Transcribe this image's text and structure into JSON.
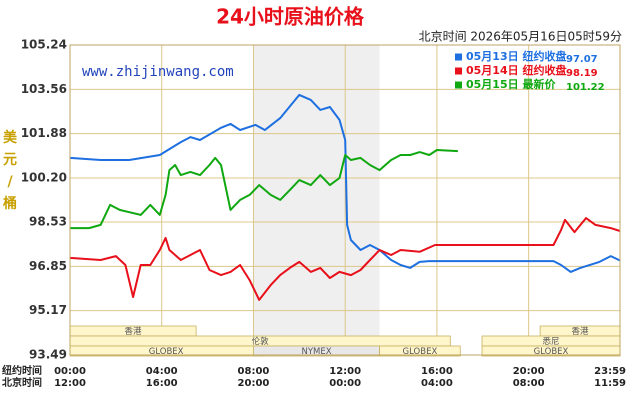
{
  "chart_data": {
    "type": "line",
    "title": "24小时原油价格",
    "subtitle": "北京时间 2026年05月16日05时59分",
    "watermark": "www.zhijinwang.com",
    "y_label": "美元/桶",
    "ylim": [
      93.49,
      105.24
    ],
    "yticks": [
      105.24,
      103.56,
      101.88,
      {
        "value": 100.2,
        "label": "100.20"
      },
      98.53,
      96.85,
      95.17,
      93.49
    ],
    "xlim": [
      0,
      1439
    ],
    "x_label": "纽约时间",
    "xticks": [
      {
        "value": 0,
        "label": "00:00"
      },
      {
        "value": 240,
        "label": "04:00"
      },
      {
        "value": 480,
        "label": "08:00"
      },
      {
        "value": 720,
        "label": "12:00"
      },
      {
        "value": 960,
        "label": "16:00"
      },
      {
        "value": 1200,
        "label": "20:00"
      },
      {
        "value": 1439,
        "label": "23:59"
      }
    ],
    "x2_label": "北京时间",
    "x2ticks": [
      {
        "value": 0,
        "label": "12:00"
      },
      {
        "value": 240,
        "label": "16:00"
      },
      {
        "value": 480,
        "label": "20:00"
      },
      {
        "value": 720,
        "label": "00:00"
      },
      {
        "value": 960,
        "label": "04:00"
      },
      {
        "value": 1200,
        "label": "08:00"
      },
      {
        "value": 1439,
        "label": "11:59"
      }
    ],
    "grid": true,
    "legend": "upper right",
    "series": [
      {
        "name": "05月13日 纽约收盘",
        "color": "#1e6fe0",
        "legend_value": 97.07,
        "x": [
          0,
          80,
          155,
          235,
          290,
          315,
          340,
          395,
          420,
          445,
          485,
          510,
          550,
          600,
          630,
          655,
          680,
          705,
          720,
          725,
          735,
          760,
          785,
          810,
          840,
          865,
          890,
          915,
          940,
          1265,
          1285,
          1310,
          1335,
          1385,
          1415,
          1439
        ],
        "values": [
          100.96,
          100.88,
          100.88,
          101.07,
          101.56,
          101.75,
          101.64,
          102.1,
          102.25,
          102.02,
          102.21,
          102.02,
          102.47,
          103.35,
          103.16,
          102.78,
          102.89,
          102.4,
          101.64,
          98.42,
          97.85,
          97.47,
          97.66,
          97.47,
          97.09,
          96.9,
          96.79,
          97.02,
          97.05,
          97.05,
          96.9,
          96.64,
          96.79,
          97.02,
          97.24,
          97.07
        ]
      },
      {
        "name": "05月14日 纽约收盘",
        "color": "#e8101a",
        "legend_value": 98.19,
        "x": [
          0,
          80,
          120,
          145,
          165,
          185,
          210,
          235,
          250,
          260,
          290,
          315,
          340,
          365,
          395,
          420,
          445,
          470,
          495,
          525,
          550,
          575,
          600,
          630,
          655,
          680,
          705,
          735,
          760,
          785,
          810,
          840,
          865,
          915,
          955,
          1265,
          1285,
          1295,
          1320,
          1350,
          1375,
          1415,
          1439
        ],
        "values": [
          97.17,
          97.09,
          97.24,
          96.9,
          95.69,
          96.9,
          96.9,
          97.47,
          97.93,
          97.47,
          97.09,
          97.28,
          97.47,
          96.71,
          96.52,
          96.64,
          96.9,
          96.33,
          95.58,
          96.14,
          96.52,
          96.79,
          97.02,
          96.64,
          96.79,
          96.41,
          96.64,
          96.52,
          96.71,
          97.09,
          97.47,
          97.28,
          97.47,
          97.4,
          97.66,
          97.66,
          98.23,
          98.61,
          98.15,
          98.68,
          98.42,
          98.3,
          98.19
        ]
      },
      {
        "name": "05月15日 最新价",
        "color": "#10a810",
        "legend_value": 101.22,
        "x": [
          0,
          50,
          80,
          105,
          130,
          185,
          210,
          235,
          250,
          260,
          275,
          290,
          315,
          340,
          365,
          380,
          395,
          420,
          445,
          470,
          495,
          525,
          550,
          575,
          600,
          630,
          655,
          680,
          705,
          720,
          735,
          760,
          785,
          810,
          840,
          865,
          890,
          915,
          940,
          960,
          1015
        ],
        "values": [
          98.3,
          98.3,
          98.42,
          99.18,
          98.99,
          98.8,
          99.18,
          98.8,
          99.56,
          100.5,
          100.69,
          100.31,
          100.43,
          100.31,
          100.69,
          100.96,
          100.69,
          98.99,
          99.37,
          99.56,
          99.93,
          99.56,
          99.37,
          99.74,
          100.12,
          99.93,
          100.31,
          99.93,
          100.2,
          101.07,
          100.88,
          100.96,
          100.69,
          100.5,
          100.88,
          101.07,
          101.07,
          101.18,
          101.07,
          101.26,
          101.22
        ]
      }
    ],
    "sessions": [
      [
        {
          "name": "香港",
          "start": 0,
          "end": 330
        },
        {
          "name": "香港",
          "start": 1230,
          "end": 1439
        }
      ],
      [
        {
          "name": "伦敦",
          "start": 0,
          "end": 995
        },
        {
          "name": "悉尼",
          "start": 1078,
          "end": 1439
        }
      ],
      [
        {
          "name": "GLOBEX",
          "start": 0,
          "end": 503
        },
        {
          "name": "NYMEX",
          "start": 480,
          "end": 810,
          "shaded": true
        },
        {
          "name": "GLOBEX",
          "start": 810,
          "end": 1021
        },
        {
          "name": "GLOBEX",
          "start": 1078,
          "end": 1439
        }
      ]
    ]
  }
}
